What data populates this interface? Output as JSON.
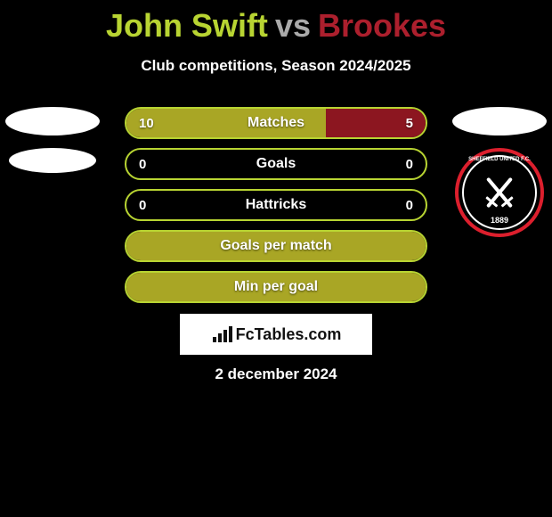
{
  "title": {
    "player1": "John Swift",
    "vs": "vs",
    "player2": "Brookes",
    "p1_color": "#b8d432",
    "vs_color": "#aaaaaa",
    "p2_color": "#ac1f2d",
    "fontsize": 36
  },
  "subtitle": "Club competitions, Season 2024/2025",
  "colors": {
    "bg": "#000000",
    "p1_fill": "#a9a625",
    "p2_fill": "#8c1620",
    "border_p1": "#b8d432",
    "border_p2": "#ac1f2d",
    "text": "#ffffff"
  },
  "crest": {
    "top_text": "SHEFFIELD UNITED F.C.",
    "year": "1889",
    "ring_color": "#dc1f2d",
    "inner_ring": "#ffffff",
    "bg": "#000000"
  },
  "rows": [
    {
      "label": "Matches",
      "left_val": "10",
      "right_val": "5",
      "left_pct": 66.6,
      "right_pct": 33.4,
      "dual": true
    },
    {
      "label": "Goals",
      "left_val": "0",
      "right_val": "0",
      "left_pct": 0,
      "right_pct": 0,
      "dual": true
    },
    {
      "label": "Hattricks",
      "left_val": "0",
      "right_val": "0",
      "left_pct": 0,
      "right_pct": 0,
      "dual": true
    },
    {
      "label": "Goals per match",
      "left_val": "",
      "right_val": "",
      "left_pct": 100,
      "right_pct": 0,
      "dual": false
    },
    {
      "label": "Min per goal",
      "left_val": "",
      "right_val": "",
      "left_pct": 100,
      "right_pct": 0,
      "dual": false
    }
  ],
  "bar": {
    "height": 36,
    "radius": 18,
    "gap": 10,
    "label_fontsize": 16,
    "val_fontsize": 15
  },
  "watermark": "FcTables.com",
  "date": "2 december 2024"
}
